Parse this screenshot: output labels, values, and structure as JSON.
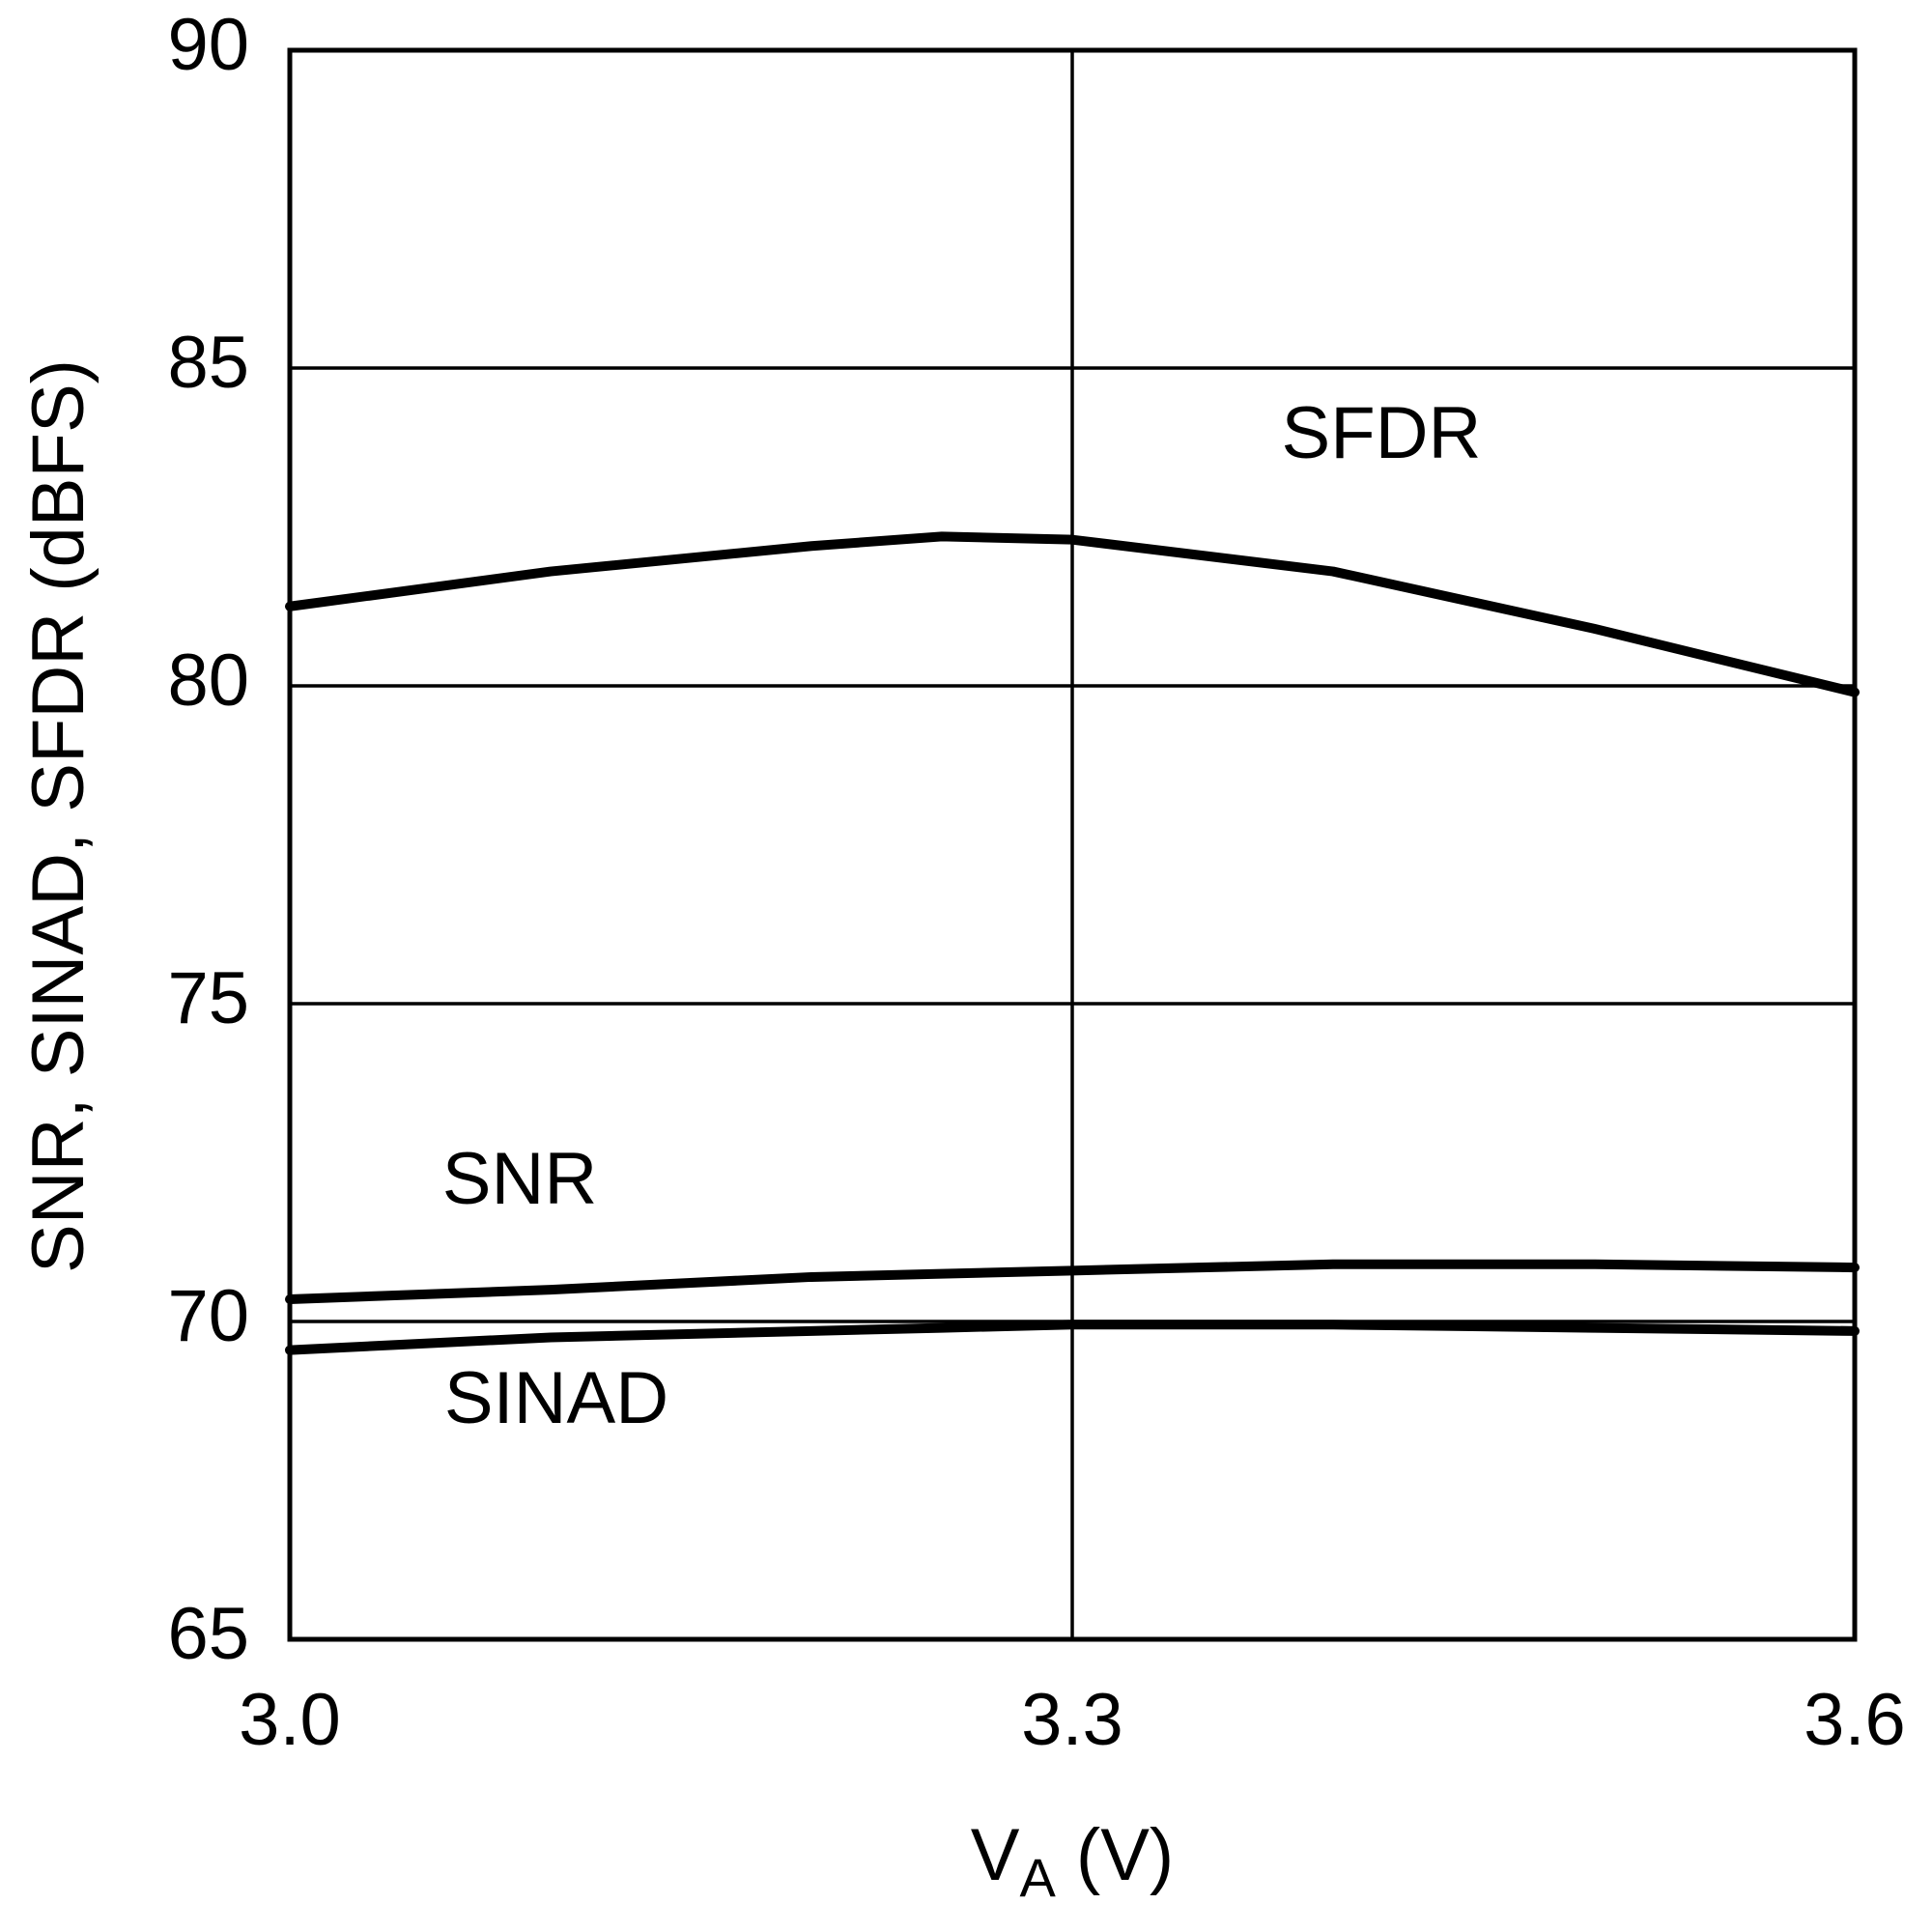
{
  "chart_data": {
    "type": "line",
    "ylabel": "SNR, SINAD, SFDR (dBFS)",
    "xlabel": [
      "V",
      "A",
      " (V)"
    ],
    "x": [
      3.0,
      3.1,
      3.2,
      3.25,
      3.3,
      3.4,
      3.5,
      3.6
    ],
    "series": [
      {
        "name": "SFDR",
        "color": "#000000",
        "values": [
          81.25,
          81.8,
          82.2,
          82.35,
          82.3,
          81.8,
          80.9,
          79.9
        ]
      },
      {
        "name": "SNR",
        "color": "#000000",
        "values": [
          70.35,
          70.5,
          70.7,
          70.75,
          70.8,
          70.9,
          70.9,
          70.85
        ]
      },
      {
        "name": "SINAD",
        "color": "#000000",
        "values": [
          69.55,
          69.75,
          69.85,
          69.9,
          69.95,
          69.95,
          69.9,
          69.85
        ]
      }
    ],
    "xlim": [
      3.0,
      3.6
    ],
    "xticks": [
      {
        "value": 3.0,
        "label": "3.0"
      },
      3.3,
      3.6
    ],
    "ylim": [
      65,
      90
    ],
    "yticks": [
      65,
      70,
      75,
      80,
      85,
      90
    ],
    "grid": true
  }
}
